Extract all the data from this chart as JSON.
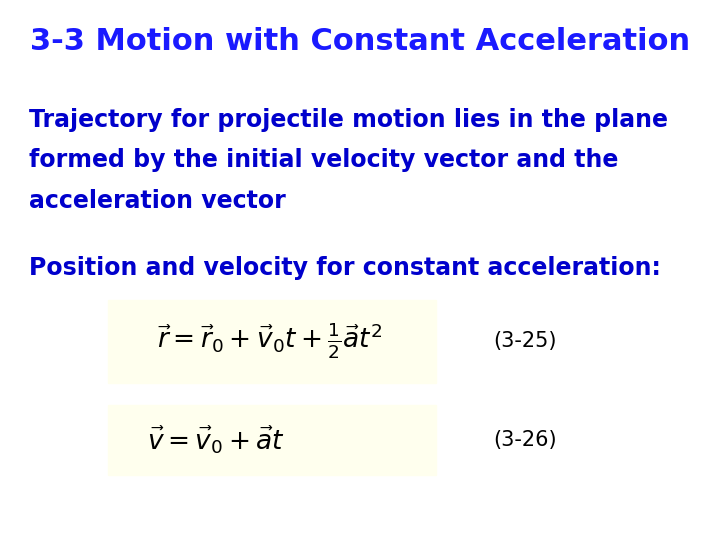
{
  "title": "3-3 Motion with Constant Acceleration",
  "title_color": "#1a1aff",
  "title_fontsize": 22,
  "body_color": "#0000cc",
  "body_fontsize": 17,
  "eq_label_color": "#000000",
  "eq_label_fontsize": 15,
  "eq_box_color": "#ffffee",
  "paragraph1_line1": "Trajectory for projectile motion lies in the plane",
  "paragraph1_line2": "formed by the initial velocity vector and the",
  "paragraph1_line3": "acceleration vector",
  "paragraph2": "Position and velocity for constant acceleration:",
  "eq1": "$\\vec{r} = \\vec{r}_0 + \\vec{v}_0 t + \\frac{1}{2}\\vec{a}t^2$",
  "eq1_label": "(3-25)",
  "eq2": "$\\vec{v} = \\vec{v}_0 + \\vec{a}t$",
  "eq2_label": "(3-26)",
  "bg_color": "#ffffff"
}
